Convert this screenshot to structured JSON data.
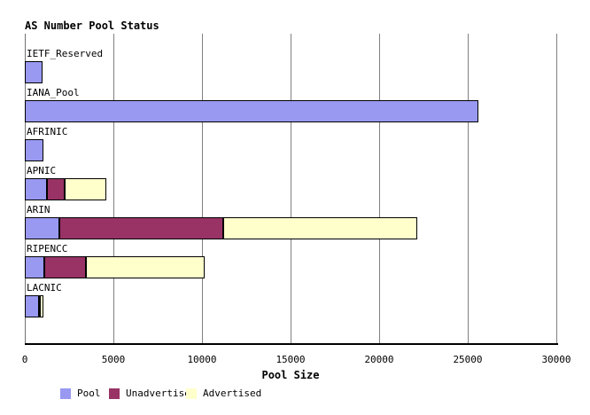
{
  "title": "AS Number Pool Status",
  "x_axis": {
    "label": "Pool Size",
    "tick_labels": [
      "0",
      "5000",
      "10000",
      "15000",
      "20000",
      "25000",
      "30000"
    ]
  },
  "legend": {
    "items": [
      {
        "label": "Pool",
        "color": "#9999f2"
      },
      {
        "label": "Unadvertised",
        "color": "#993366"
      },
      {
        "label": "Advertised",
        "color": "#ffffcc"
      }
    ]
  },
  "chart_data": {
    "type": "bar",
    "orientation": "horizontal",
    "stacked": true,
    "title": "AS Number Pool Status",
    "xlabel": "Pool Size",
    "xlim": [
      0,
      30000
    ],
    "xticks": [
      0,
      5000,
      10000,
      15000,
      20000,
      25000,
      30000
    ],
    "grid": "vertical",
    "legend_position": "bottom",
    "categories": [
      "IETF_Reserved",
      "IANA_Pool",
      "AFRINIC",
      "APNIC",
      "ARIN",
      "RIPENCC",
      "LACNIC"
    ],
    "series": [
      {
        "name": "Pool",
        "color": "#9999f2",
        "values": [
          1000,
          25600,
          1050,
          1250,
          1950,
          1100,
          800
        ]
      },
      {
        "name": "Unadvertised",
        "color": "#993366",
        "values": [
          0,
          0,
          0,
          1000,
          9250,
          2350,
          50
        ]
      },
      {
        "name": "Advertised",
        "color": "#ffffcc",
        "values": [
          0,
          0,
          0,
          2350,
          10950,
          6700,
          175
        ]
      }
    ]
  }
}
